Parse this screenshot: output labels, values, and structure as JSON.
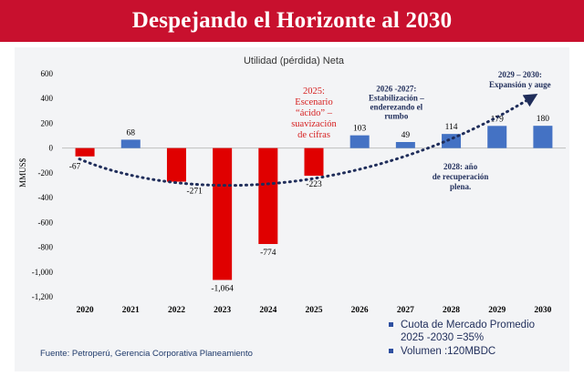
{
  "banner": {
    "title": "Despejando el Horizonte al 2030"
  },
  "chart_data": {
    "type": "bar",
    "title": "Utilidad (pérdida) Neta",
    "ylabel": "MMUS$",
    "xlabel": "",
    "ylim": [
      -1200,
      600
    ],
    "yticks": [
      600,
      400,
      200,
      0,
      -200,
      -400,
      -600,
      -800,
      -1000,
      -1200
    ],
    "ytick_labels": [
      "600",
      "400",
      "200",
      "0",
      "-200",
      "-400",
      "-600",
      "-800",
      "-1,000",
      "-1,200"
    ],
    "grid": false,
    "categories": [
      "2020",
      "2021",
      "2022",
      "2023",
      "2024",
      "2025",
      "2026",
      "2027",
      "2028",
      "2029",
      "2030"
    ],
    "values": [
      -67,
      68,
      -271,
      -1064,
      -774,
      -223,
      103,
      49,
      114,
      179,
      180
    ],
    "value_labels": [
      "-67",
      "68",
      "-271",
      "-1,064",
      "-774",
      "-223",
      "103",
      "49",
      "114",
      "179",
      "180"
    ],
    "colors": {
      "positive": "#4472c4",
      "negative": "#e00000",
      "trend": "#1f2d5a"
    },
    "trend_line": "dotted curve with arrow",
    "annotations": {
      "a2025": [
        "2025:",
        "Escenario",
        "“ácido” –",
        "suavización",
        "de cifras"
      ],
      "a2026": [
        "2026 -2027:",
        "Estabilización –",
        "enderezando el",
        "rumbo"
      ],
      "a2028": [
        "2028: año",
        "de recuperación",
        "plena."
      ],
      "a2029": [
        "2029 – 2030:",
        "Expansión y auge"
      ]
    }
  },
  "footer": {
    "source": "Fuente: Petroperú, Gerencia Corporativa Planeamiento"
  },
  "bullets": {
    "b1_line1": "Cuota de Mercado Promedio",
    "b1_line2": "2025  -2030 =35%",
    "b2": "Volumen :120MBDC"
  }
}
